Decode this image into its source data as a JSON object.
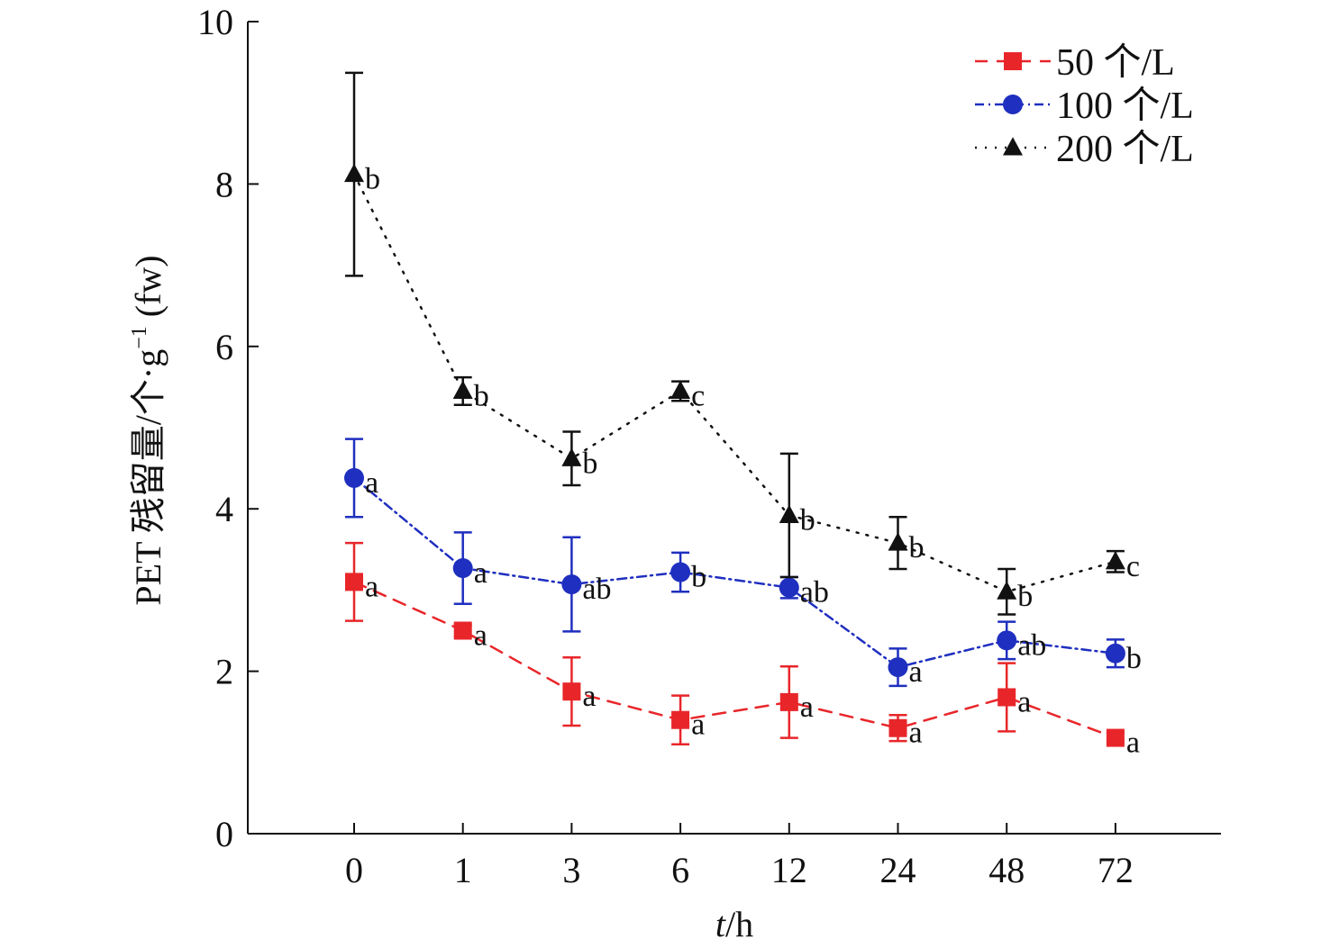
{
  "chart_data": {
    "type": "line",
    "categories": [
      "0",
      "1",
      "3",
      "6",
      "12",
      "24",
      "48",
      "72"
    ],
    "xlabel_italic": "t",
    "xlabel_unit": "/h",
    "ylabel": "PET 残留量/个·g",
    "ylabel_sup": "−1",
    "ylabel_tail": " (fw)",
    "ylim": [
      0,
      10
    ],
    "yticks": [
      "0",
      "2",
      "4",
      "6",
      "8",
      "10"
    ],
    "legend_position": "top-right",
    "series": [
      {
        "name": "50 个/L",
        "color": "#e8262a",
        "marker": "square",
        "line": "dashed",
        "values": [
          3.1,
          2.5,
          1.75,
          1.4,
          1.62,
          1.3,
          1.68,
          1.18
        ],
        "errors": [
          0.48,
          0.07,
          0.42,
          0.3,
          0.44,
          0.16,
          0.42,
          0.06
        ],
        "labels": [
          "a",
          "a",
          "a",
          "a",
          "a",
          "a",
          "a",
          "a"
        ]
      },
      {
        "name": "100 个/L",
        "color": "#1f2fbf",
        "marker": "circle",
        "line": "dashdot",
        "values": [
          4.38,
          3.27,
          3.07,
          3.22,
          3.03,
          2.05,
          2.38,
          2.22
        ],
        "errors": [
          0.48,
          0.44,
          0.58,
          0.24,
          0.13,
          0.23,
          0.23,
          0.17
        ],
        "labels": [
          "a",
          "a",
          "ab",
          "b",
          "ab",
          "a",
          "ab",
          "b"
        ]
      },
      {
        "name": "200 个/L",
        "color": "#111111",
        "marker": "triangle",
        "line": "dotted",
        "values": [
          8.12,
          5.45,
          4.62,
          5.45,
          3.92,
          3.58,
          2.98,
          3.35
        ],
        "errors": [
          1.25,
          0.17,
          0.33,
          0.12,
          0.76,
          0.32,
          0.28,
          0.13
        ],
        "labels": [
          "b",
          "b",
          "b",
          "c",
          "b",
          "b",
          "b",
          "c"
        ]
      }
    ]
  }
}
